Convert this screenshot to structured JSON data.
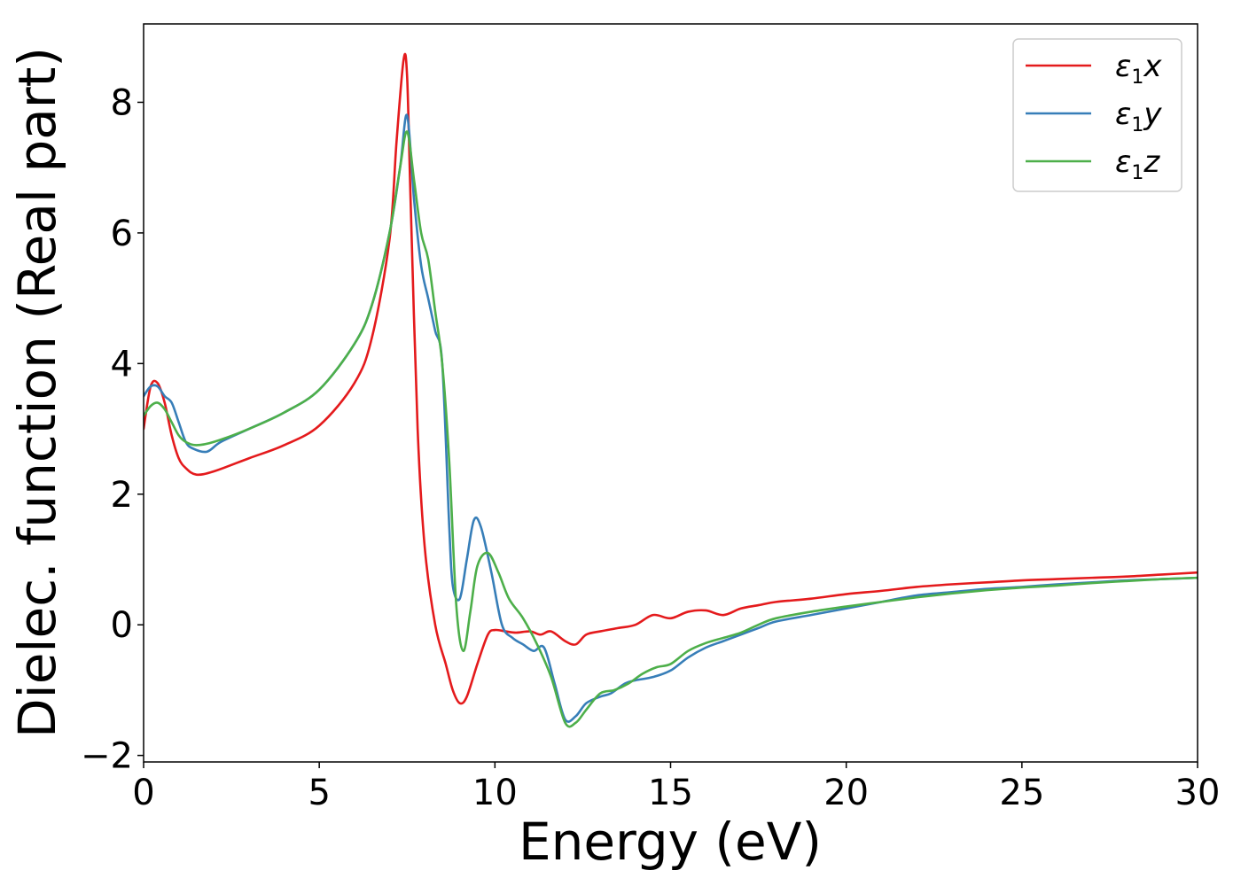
{
  "chart_data": {
    "type": "line",
    "xlabel": "Energy (eV)",
    "ylabel": "Dielec. function (Real part)",
    "xlim": [
      0,
      30
    ],
    "ylim": [
      -2.1,
      9.2
    ],
    "xticks": [
      0,
      5,
      10,
      15,
      20,
      25,
      30
    ],
    "xtick_labels": [
      "0",
      "5",
      "10",
      "15",
      "20",
      "25",
      "30"
    ],
    "yticks": [
      -2,
      0,
      2,
      4,
      6,
      8
    ],
    "ytick_labels": [
      "−2",
      "0",
      "2",
      "4",
      "6",
      "8"
    ],
    "grid": false,
    "legend_position": "top-right",
    "series": [
      {
        "name": "ε₁x",
        "legend_symbol": "ε",
        "legend_sub": "1",
        "legend_suffix": "x",
        "color": "#e41a1c",
        "x": [
          0,
          0.2,
          0.4,
          0.6,
          0.8,
          1.0,
          1.2,
          1.5,
          2,
          3,
          4,
          5,
          6,
          6.5,
          7.0,
          7.2,
          7.4,
          7.5,
          7.6,
          7.8,
          8.0,
          8.3,
          8.6,
          8.8,
          9.0,
          9.2,
          9.5,
          9.8,
          10.0,
          10.3,
          10.6,
          11.0,
          11.3,
          11.6,
          12.0,
          12.3,
          12.6,
          13.0,
          13.5,
          14.0,
          14.5,
          15.0,
          15.5,
          16.0,
          16.5,
          17.0,
          17.5,
          18.0,
          19.0,
          20.0,
          21.0,
          22.0,
          23.0,
          24.0,
          25.0,
          26.0,
          27.0,
          28.0,
          29.0,
          30.0
        ],
        "y": [
          3.0,
          3.65,
          3.7,
          3.4,
          2.9,
          2.55,
          2.4,
          2.3,
          2.35,
          2.55,
          2.75,
          3.05,
          3.7,
          4.4,
          5.9,
          7.4,
          8.65,
          8.4,
          6.5,
          3.0,
          1.2,
          0.0,
          -0.6,
          -1.0,
          -1.2,
          -1.1,
          -0.6,
          -0.15,
          -0.08,
          -0.1,
          -0.12,
          -0.1,
          -0.15,
          -0.1,
          -0.25,
          -0.3,
          -0.15,
          -0.1,
          -0.05,
          0.0,
          0.15,
          0.1,
          0.2,
          0.22,
          0.15,
          0.25,
          0.3,
          0.35,
          0.4,
          0.47,
          0.52,
          0.58,
          0.62,
          0.65,
          0.68,
          0.7,
          0.72,
          0.74,
          0.77,
          0.8
        ]
      },
      {
        "name": "ε₁y",
        "legend_symbol": "ε",
        "legend_sub": "1",
        "legend_suffix": "y",
        "color": "#377eb8",
        "x": [
          0,
          0.2,
          0.4,
          0.6,
          0.8,
          1.0,
          1.2,
          1.4,
          1.8,
          2.2,
          3,
          4,
          5,
          6,
          6.5,
          7.0,
          7.3,
          7.5,
          7.7,
          7.9,
          8.1,
          8.3,
          8.5,
          8.7,
          8.8,
          9.0,
          9.2,
          9.4,
          9.6,
          9.9,
          10.2,
          10.5,
          10.8,
          11.1,
          11.4,
          11.7,
          12.0,
          12.3,
          12.6,
          13.0,
          13.3,
          13.7,
          14.0,
          14.5,
          15.0,
          15.5,
          16.0,
          16.5,
          17.0,
          17.5,
          18.0,
          19.0,
          20.0,
          21.0,
          22.0,
          23.0,
          24.0,
          25.0,
          26.0,
          27.0,
          28.0,
          29.0,
          30.0
        ],
        "y": [
          3.5,
          3.65,
          3.65,
          3.5,
          3.4,
          3.1,
          2.8,
          2.7,
          2.65,
          2.8,
          3.0,
          3.25,
          3.6,
          4.3,
          4.9,
          6.0,
          7.0,
          7.8,
          6.5,
          5.5,
          5.0,
          4.5,
          4.0,
          1.5,
          0.6,
          0.4,
          1.0,
          1.6,
          1.5,
          0.8,
          0.0,
          -0.2,
          -0.3,
          -0.4,
          -0.35,
          -0.9,
          -1.45,
          -1.4,
          -1.2,
          -1.1,
          -1.05,
          -0.9,
          -0.85,
          -0.8,
          -0.7,
          -0.5,
          -0.35,
          -0.25,
          -0.15,
          -0.05,
          0.05,
          0.15,
          0.25,
          0.35,
          0.45,
          0.5,
          0.55,
          0.58,
          0.62,
          0.65,
          0.68,
          0.7,
          0.72
        ]
      },
      {
        "name": "ε₁z",
        "legend_symbol": "ε",
        "legend_sub": "1",
        "legend_suffix": "z",
        "color": "#4daf4a",
        "x": [
          0,
          0.2,
          0.4,
          0.6,
          0.8,
          1.0,
          1.2,
          1.5,
          2.0,
          3,
          4,
          5,
          6,
          6.5,
          7.0,
          7.3,
          7.5,
          7.7,
          7.9,
          8.1,
          8.3,
          8.5,
          8.7,
          8.9,
          9.1,
          9.3,
          9.5,
          9.8,
          10.1,
          10.4,
          10.8,
          11.2,
          11.6,
          12.0,
          12.3,
          12.6,
          13.0,
          13.4,
          13.8,
          14.2,
          14.6,
          15.0,
          15.5,
          16.0,
          16.5,
          17.0,
          17.5,
          18.0,
          19.0,
          20.0,
          21.0,
          22.0,
          23.0,
          24.0,
          25.0,
          26.0,
          27.0,
          28.0,
          29.0,
          30.0
        ],
        "y": [
          3.2,
          3.35,
          3.4,
          3.3,
          3.1,
          2.9,
          2.8,
          2.75,
          2.8,
          3.0,
          3.25,
          3.6,
          4.3,
          4.9,
          6.0,
          7.0,
          7.55,
          6.8,
          6.0,
          5.6,
          4.8,
          4.0,
          2.5,
          0.3,
          -0.4,
          0.2,
          0.9,
          1.1,
          0.8,
          0.4,
          0.1,
          -0.3,
          -0.8,
          -1.5,
          -1.5,
          -1.3,
          -1.05,
          -1.0,
          -0.9,
          -0.75,
          -0.65,
          -0.6,
          -0.4,
          -0.28,
          -0.2,
          -0.12,
          0.0,
          0.1,
          0.2,
          0.28,
          0.35,
          0.42,
          0.48,
          0.53,
          0.57,
          0.6,
          0.64,
          0.67,
          0.7,
          0.72
        ]
      }
    ]
  }
}
